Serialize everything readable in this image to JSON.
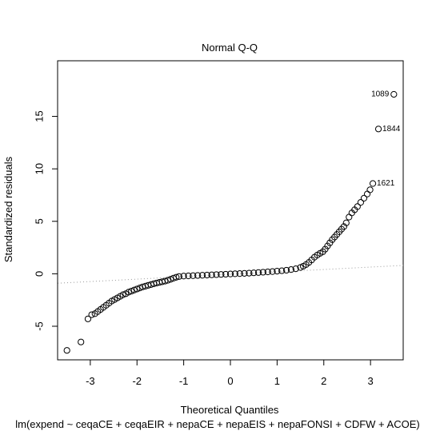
{
  "chart_data": {
    "type": "scatter",
    "title": "Normal Q-Q",
    "xlabel": "Theoretical Quantiles",
    "ylabel": "Standardized residuals",
    "caption": "lm(expend ~ ceqaCE + ceqaEIR + nepaCE + nepaEIS + nepaFONSI + CDFW + ACOE)",
    "xlim": [
      -3.7,
      3.7
    ],
    "ylim": [
      -8.2,
      20.3
    ],
    "xticks": [
      -3,
      -2,
      -1,
      0,
      1,
      2,
      3
    ],
    "yticks": [
      -5,
      0,
      5,
      10,
      15
    ],
    "grid": false,
    "reference_line": {
      "style": "dotted",
      "color": "#999999",
      "x": [
        -3.7,
        3.7
      ],
      "y": [
        -0.9,
        0.8
      ]
    },
    "annotations": [
      {
        "text": "1089",
        "x": 3.5,
        "y": 17.1
      },
      {
        "text": "1844",
        "x": 3.17,
        "y": 13.8
      },
      {
        "text": "1621",
        "x": 3.05,
        "y": 8.6
      }
    ],
    "points": [
      [
        -3.5,
        -7.3
      ],
      [
        -3.2,
        -6.5
      ],
      [
        -3.05,
        -4.3
      ],
      [
        -2.97,
        -3.9
      ],
      [
        -2.9,
        -3.8
      ],
      [
        -2.84,
        -3.6
      ],
      [
        -2.78,
        -3.4
      ],
      [
        -2.72,
        -3.2
      ],
      [
        -2.66,
        -3.0
      ],
      [
        -2.6,
        -2.8
      ],
      [
        -2.54,
        -2.6
      ],
      [
        -2.48,
        -2.45
      ],
      [
        -2.42,
        -2.3
      ],
      [
        -2.36,
        -2.15
      ],
      [
        -2.3,
        -2.0
      ],
      [
        -2.24,
        -1.9
      ],
      [
        -2.18,
        -1.75
      ],
      [
        -2.12,
        -1.65
      ],
      [
        -2.06,
        -1.55
      ],
      [
        -2.0,
        -1.45
      ],
      [
        -1.94,
        -1.35
      ],
      [
        -1.88,
        -1.25
      ],
      [
        -1.82,
        -1.18
      ],
      [
        -1.76,
        -1.1
      ],
      [
        -1.7,
        -1.03
      ],
      [
        -1.64,
        -0.95
      ],
      [
        -1.58,
        -0.88
      ],
      [
        -1.52,
        -0.82
      ],
      [
        -1.46,
        -0.76
      ],
      [
        -1.4,
        -0.7
      ],
      [
        -1.34,
        -0.62
      ],
      [
        -1.28,
        -0.52
      ],
      [
        -1.22,
        -0.42
      ],
      [
        -1.16,
        -0.33
      ],
      [
        -1.1,
        -0.26
      ],
      [
        -1.0,
        -0.22
      ],
      [
        -0.9,
        -0.2
      ],
      [
        -0.8,
        -0.18
      ],
      [
        -0.7,
        -0.16
      ],
      [
        -0.6,
        -0.14
      ],
      [
        -0.5,
        -0.12
      ],
      [
        -0.4,
        -0.1
      ],
      [
        -0.3,
        -0.08
      ],
      [
        -0.2,
        -0.06
      ],
      [
        -0.1,
        -0.04
      ],
      [
        0.0,
        -0.02
      ],
      [
        0.1,
        0.0
      ],
      [
        0.2,
        0.02
      ],
      [
        0.3,
        0.04
      ],
      [
        0.4,
        0.06
      ],
      [
        0.5,
        0.09
      ],
      [
        0.6,
        0.12
      ],
      [
        0.7,
        0.15
      ],
      [
        0.8,
        0.18
      ],
      [
        0.9,
        0.21
      ],
      [
        1.0,
        0.25
      ],
      [
        1.1,
        0.29
      ],
      [
        1.2,
        0.34
      ],
      [
        1.3,
        0.4
      ],
      [
        1.4,
        0.48
      ],
      [
        1.5,
        0.6
      ],
      [
        1.56,
        0.72
      ],
      [
        1.62,
        0.88
      ],
      [
        1.68,
        1.08
      ],
      [
        1.74,
        1.32
      ],
      [
        1.8,
        1.58
      ],
      [
        1.86,
        1.78
      ],
      [
        1.92,
        1.95
      ],
      [
        1.98,
        2.1
      ],
      [
        2.03,
        2.35
      ],
      [
        2.08,
        2.65
      ],
      [
        2.13,
        2.95
      ],
      [
        2.18,
        3.25
      ],
      [
        2.23,
        3.5
      ],
      [
        2.28,
        3.75
      ],
      [
        2.33,
        4.0
      ],
      [
        2.38,
        4.25
      ],
      [
        2.43,
        4.5
      ],
      [
        2.48,
        4.85
      ],
      [
        2.54,
        5.4
      ],
      [
        2.6,
        5.8
      ],
      [
        2.66,
        6.1
      ],
      [
        2.72,
        6.4
      ],
      [
        2.79,
        6.8
      ],
      [
        2.86,
        7.2
      ],
      [
        2.93,
        7.6
      ],
      [
        2.99,
        8.0
      ],
      [
        3.05,
        8.6
      ],
      [
        3.17,
        13.8
      ],
      [
        3.5,
        17.1
      ]
    ]
  }
}
